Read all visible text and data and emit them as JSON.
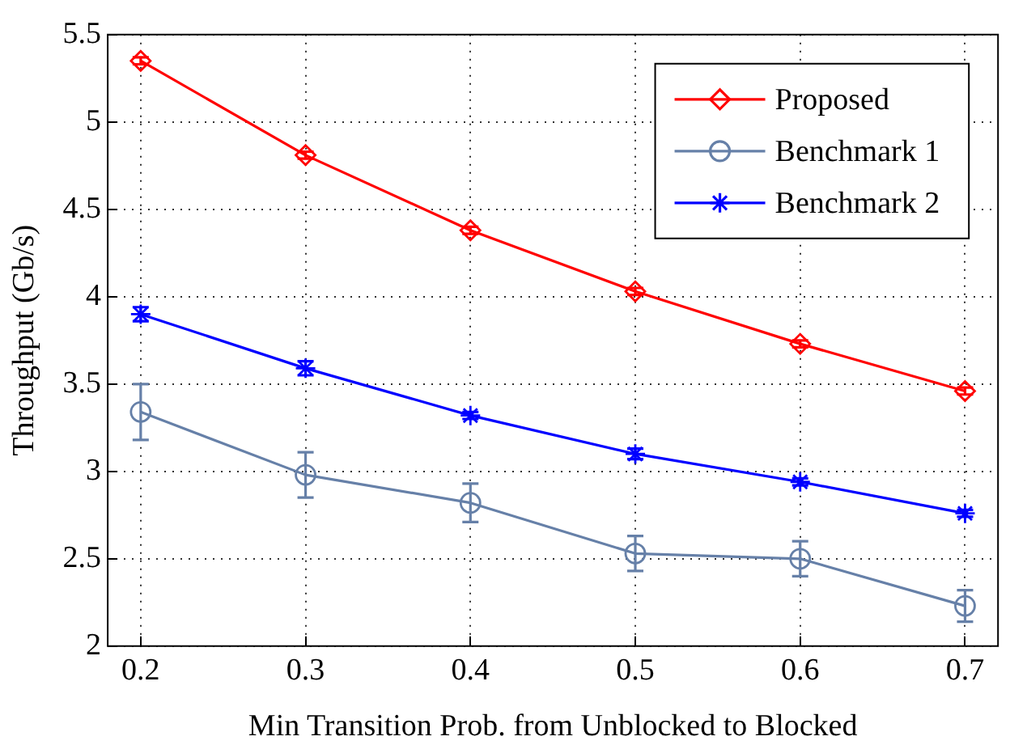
{
  "chart_data": {
    "type": "line",
    "xlabel": "Min Transition Prob. from Unblocked to Blocked",
    "ylabel": "Throughput (Gb/s)",
    "x": [
      0.2,
      0.3,
      0.4,
      0.5,
      0.6,
      0.7
    ],
    "series": [
      {
        "name": "Proposed",
        "color": "#ff0000",
        "marker": "diamond",
        "values": [
          5.35,
          4.81,
          4.38,
          4.03,
          3.73,
          3.46
        ],
        "errors": [
          0.02,
          0.02,
          0.02,
          0.02,
          0.02,
          0.02
        ]
      },
      {
        "name": "Benchmark 1",
        "color": "#6680a8",
        "marker": "circle",
        "values": [
          3.34,
          2.98,
          2.82,
          2.53,
          2.5,
          2.23
        ],
        "errors": [
          0.16,
          0.13,
          0.11,
          0.1,
          0.1,
          0.09
        ]
      },
      {
        "name": "Benchmark 2",
        "color": "#0000ff",
        "marker": "cross",
        "values": [
          3.9,
          3.59,
          3.32,
          3.1,
          2.94,
          2.76
        ],
        "errors": [
          0.04,
          0.04,
          0.02,
          0.03,
          0.02,
          0.02
        ]
      }
    ],
    "xlim": [
      0.18,
      0.72
    ],
    "xticks": [
      0.2,
      0.3,
      0.4,
      0.5,
      0.6,
      0.7
    ],
    "ylim": [
      2,
      5.5
    ],
    "yticks": [
      2,
      2.5,
      3,
      3.5,
      4,
      4.5,
      5,
      5.5
    ],
    "grid": true,
    "legend": "top right",
    "line_style": "solid"
  }
}
